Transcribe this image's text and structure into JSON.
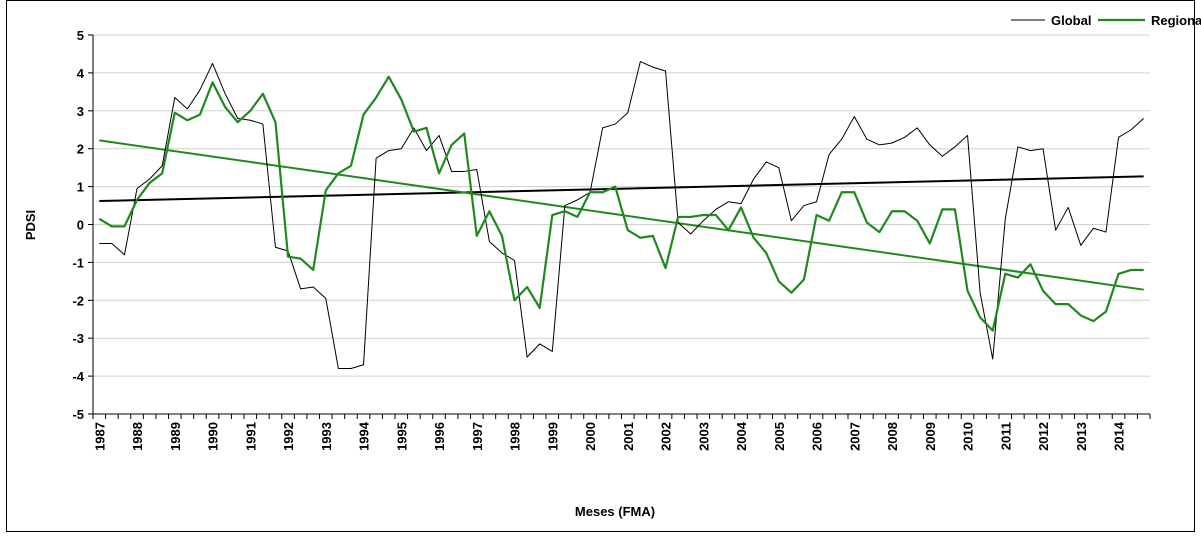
{
  "chart_data": {
    "type": "line",
    "x_label": "Meses (FMA)",
    "y_label": "PDSI",
    "categories": [
      "1987",
      null,
      null,
      "1988",
      null,
      null,
      "1989",
      null,
      null,
      "1990",
      null,
      null,
      "1991",
      null,
      null,
      "1992",
      null,
      null,
      "1993",
      null,
      null,
      "1994",
      null,
      null,
      "1995",
      null,
      null,
      "1996",
      null,
      null,
      "1997",
      null,
      null,
      "1998",
      null,
      null,
      "1999",
      null,
      null,
      "2000",
      null,
      null,
      "2001",
      null,
      null,
      "2002",
      null,
      null,
      "2003",
      null,
      null,
      "2004",
      null,
      null,
      "2005",
      null,
      null,
      "2006",
      null,
      null,
      "2007",
      null,
      null,
      "2008",
      null,
      null,
      "2009",
      null,
      null,
      "2010",
      null,
      null,
      "2011",
      null,
      null,
      "2012",
      null,
      null,
      "2013",
      null,
      null,
      "2014",
      null,
      null
    ],
    "series": [
      {
        "name": "Global",
        "color": "#000000",
        "width": 1,
        "values": [
          -0.5,
          -0.5,
          -0.8,
          0.95,
          1.2,
          1.55,
          3.35,
          3.05,
          3.55,
          4.25,
          3.45,
          2.8,
          2.75,
          2.65,
          -0.6,
          -0.7,
          -1.7,
          -1.65,
          -1.95,
          -3.8,
          -3.8,
          -3.7,
          1.75,
          1.95,
          2.0,
          2.55,
          1.95,
          2.35,
          1.4,
          1.4,
          1.45,
          -0.45,
          -0.75,
          -0.95,
          -3.5,
          -3.15,
          -3.35,
          0.5,
          0.65,
          0.85,
          2.55,
          2.65,
          2.95,
          4.3,
          4.15,
          4.05,
          0.05,
          -0.25,
          0.1,
          0.4,
          0.6,
          0.55,
          1.2,
          1.65,
          1.5,
          0.1,
          0.5,
          0.6,
          1.85,
          2.25,
          2.85,
          2.25,
          2.1,
          2.15,
          2.3,
          2.55,
          2.1,
          1.8,
          2.05,
          2.35,
          -1.8,
          -3.55,
          0.15,
          2.05,
          1.95,
          2.0,
          -0.15,
          0.45,
          -0.55,
          -0.1,
          -0.2,
          2.3,
          2.5,
          2.8
        ]
      },
      {
        "name": "Regional",
        "color": "#1e8a1e",
        "width": 2.2,
        "values": [
          0.15,
          -0.05,
          -0.05,
          0.65,
          1.1,
          1.35,
          2.95,
          2.75,
          2.9,
          3.75,
          3.1,
          2.7,
          3.0,
          3.45,
          2.7,
          -0.85,
          -0.9,
          -1.2,
          0.9,
          1.35,
          1.55,
          2.9,
          3.35,
          3.9,
          3.3,
          2.45,
          2.55,
          1.35,
          2.1,
          2.4,
          -0.3,
          0.35,
          -0.3,
          -2.0,
          -1.65,
          -2.2,
          0.25,
          0.35,
          0.2,
          0.85,
          0.85,
          1.0,
          -0.15,
          -0.35,
          -0.3,
          -1.15,
          0.2,
          0.2,
          0.25,
          0.25,
          -0.15,
          0.45,
          -0.35,
          -0.75,
          -1.5,
          -1.8,
          -1.45,
          0.25,
          0.1,
          0.85,
          0.85,
          0.05,
          -0.2,
          0.35,
          0.35,
          0.1,
          -0.5,
          0.4,
          0.4,
          -1.75,
          -2.45,
          -2.8,
          -1.3,
          -1.4,
          -1.05,
          -1.75,
          -2.1,
          -2.1,
          -2.4,
          -2.55,
          -2.3,
          -1.3,
          -1.2,
          -1.2
        ]
      }
    ],
    "trendlines": [
      {
        "color": "#000000",
        "values": [
          0.62,
          1.27
        ]
      },
      {
        "color": "#1e8a1e",
        "values": [
          2.22,
          -1.72
        ]
      }
    ],
    "ylim": [
      -5,
      5
    ],
    "yticks": [
      -5,
      -4,
      -3,
      -2,
      -1,
      0,
      1,
      2,
      3,
      4,
      5
    ],
    "grid": true,
    "legend": "top-right"
  }
}
